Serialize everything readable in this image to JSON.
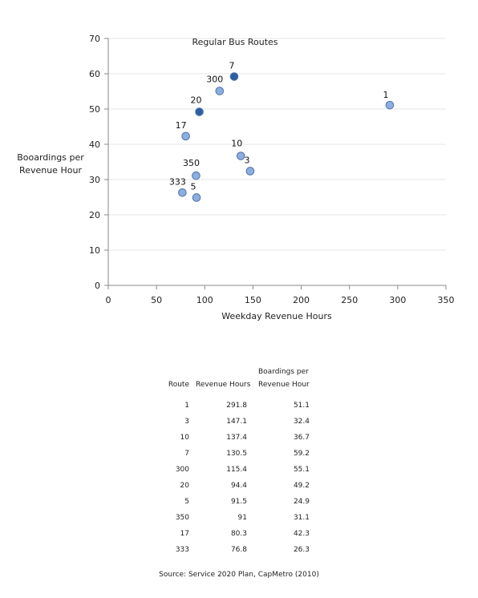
{
  "chart_data": {
    "type": "scatter",
    "title": "Regular Bus Routes",
    "xlabel": "Weekday Revenue Hours",
    "ylabel": "Booardings per Revenue Hour",
    "xlim": [
      0,
      350
    ],
    "ylim": [
      0,
      70
    ],
    "xticks": [
      0,
      50,
      100,
      150,
      200,
      250,
      300,
      350
    ],
    "yticks": [
      0,
      10,
      20,
      30,
      40,
      50,
      60,
      70
    ],
    "grid": true,
    "colors": {
      "point": "#8eaedd",
      "highlight": "#2e5ea0",
      "stroke": "#4a72b0"
    },
    "points": [
      {
        "label": "1",
        "x": 291.8,
        "y": 51.1,
        "highlight": false
      },
      {
        "label": "3",
        "x": 147.1,
        "y": 32.4,
        "highlight": false
      },
      {
        "label": "10",
        "x": 137.4,
        "y": 36.7,
        "highlight": false
      },
      {
        "label": "7",
        "x": 130.5,
        "y": 59.2,
        "highlight": true
      },
      {
        "label": "300",
        "x": 115.4,
        "y": 55.1,
        "highlight": false
      },
      {
        "label": "20",
        "x": 94.4,
        "y": 49.2,
        "highlight": true
      },
      {
        "label": "5",
        "x": 91.5,
        "y": 24.9,
        "highlight": false
      },
      {
        "label": "350",
        "x": 91,
        "y": 31.1,
        "highlight": false
      },
      {
        "label": "17",
        "x": 80.3,
        "y": 42.3,
        "highlight": false
      },
      {
        "label": "333",
        "x": 76.8,
        "y": 26.3,
        "highlight": false
      }
    ]
  },
  "table": {
    "headers": {
      "route": "Route",
      "revenue_hours": "Revenue Hours",
      "boardings": "Boardings per Revenue Hour"
    },
    "rows": [
      {
        "route": "1",
        "revenue_hours": "291.8",
        "boardings": "51.1"
      },
      {
        "route": "3",
        "revenue_hours": "147.1",
        "boardings": "32.4"
      },
      {
        "route": "10",
        "revenue_hours": "137.4",
        "boardings": "36.7"
      },
      {
        "route": "7",
        "revenue_hours": "130.5",
        "boardings": "59.2"
      },
      {
        "route": "300",
        "revenue_hours": "115.4",
        "boardings": "55.1"
      },
      {
        "route": "20",
        "revenue_hours": "94.4",
        "boardings": "49.2"
      },
      {
        "route": "5",
        "revenue_hours": "91.5",
        "boardings": "24.9"
      },
      {
        "route": "350",
        "revenue_hours": "91",
        "boardings": "31.1"
      },
      {
        "route": "17",
        "revenue_hours": "80.3",
        "boardings": "42.3"
      },
      {
        "route": "333",
        "revenue_hours": "76.8",
        "boardings": "26.3"
      }
    ]
  },
  "source": "Source: Service 2020 Plan, CapMetro (2010)"
}
